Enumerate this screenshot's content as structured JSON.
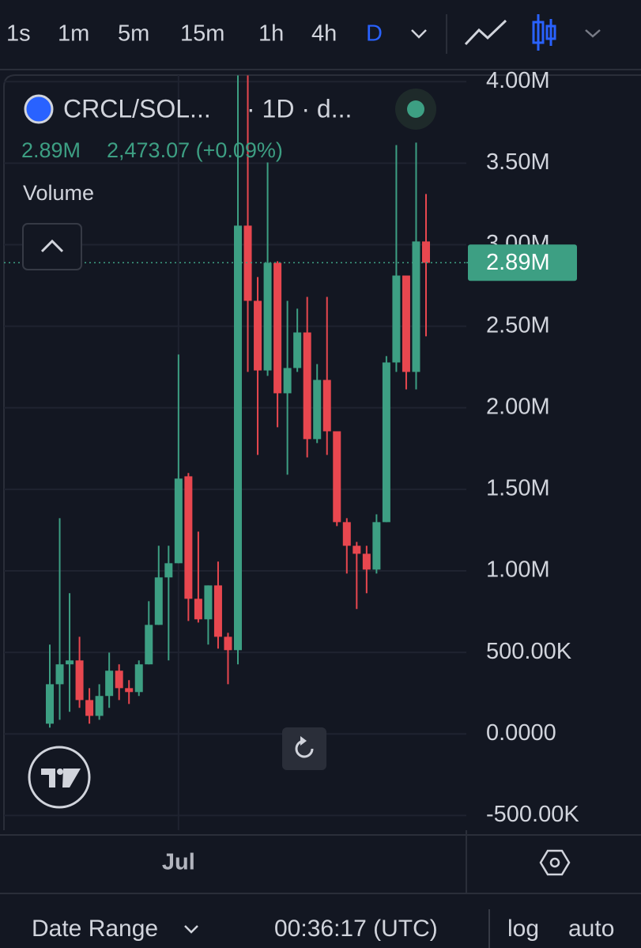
{
  "toolbar": {
    "intervals": [
      "1s",
      "1m",
      "5m",
      "15m",
      "1h",
      "4h",
      "D"
    ]
  },
  "legend": {
    "symbol": "CRCL/SOL...",
    "interval": "· 1D · d...",
    "last": "2.89M",
    "change": "2,473.07 (+0.09%)",
    "study": "Volume"
  },
  "bottom_bar": {
    "date_range": "Date Range",
    "clock": "00:36:17 (UTC)",
    "log": "log",
    "auto": "auto"
  },
  "chart_data": {
    "type": "candlestick",
    "categories": [
      null,
      null,
      null,
      null,
      null,
      null,
      null,
      null,
      null,
      null,
      null,
      null,
      null,
      "Jul",
      null,
      null,
      null,
      null,
      null,
      null,
      null,
      null,
      null,
      null,
      null,
      null,
      null,
      null,
      null,
      null,
      null,
      null,
      null,
      null,
      null,
      null,
      null,
      null,
      null
    ],
    "up_color": "#3d9f83",
    "down_color": "#e8474f",
    "open": [
      63000,
      305000,
      427000,
      451000,
      208000,
      111000,
      233000,
      388000,
      281000,
      257000,
      427000,
      669000,
      960000,
      1047000,
      1580000,
      829000,
      703000,
      911000,
      596000,
      514000,
      3117000,
      2656000,
      2229000,
      2889000,
      2089000,
      2244000,
      2462000,
      1808000,
      2171000,
      1856000,
      1299000,
      1154000,
      1105000,
      1008000,
      1299000,
      2278000,
      2811000,
      2220000,
      3020000
    ],
    "high": [
      548000,
      1323000,
      863000,
      596000,
      281000,
      305000,
      499000,
      427000,
      330000,
      451000,
      814000,
      1154000,
      1154000,
      2327000,
      1600000,
      1241000,
      911000,
      1057000,
      620000,
      4038000,
      4038000,
      2802000,
      3504000,
      2899000,
      2656000,
      2608000,
      2680000,
      2268000,
      2680000,
      1856000,
      1323000,
      1178000,
      1154000,
      1347000,
      2317000,
      3611000,
      2811000,
      3626000,
      3311000
    ],
    "low": [
      39000,
      87000,
      136000,
      160000,
      63000,
      87000,
      160000,
      208000,
      184000,
      233000,
      427000,
      669000,
      451000,
      1047000,
      693000,
      683000,
      548000,
      523000,
      305000,
      427000,
      2220000,
      1711000,
      2196000,
      1881000,
      1590000,
      2220000,
      1696000,
      1784000,
      1711000,
      1275000,
      984000,
      766000,
      863000,
      984000,
      1299000,
      2220000,
      2113000,
      2113000,
      2438000
    ],
    "close": [
      305000,
      427000,
      451000,
      208000,
      111000,
      233000,
      388000,
      281000,
      257000,
      427000,
      669000,
      960000,
      1047000,
      1566000,
      829000,
      703000,
      911000,
      596000,
      514000,
      3117000,
      2656000,
      2229000,
      2889000,
      2089000,
      2244000,
      2462000,
      1808000,
      2171000,
      1856000,
      1299000,
      1154000,
      1105000,
      1008000,
      1299000,
      2278000,
      2811000,
      2220000,
      3020000,
      2889000
    ],
    "last_price": {
      "value": 2890000,
      "label": "2.89M"
    },
    "ylim": [
      -590000,
      4040000
    ],
    "yticks": [
      {
        "value": -500000,
        "label": "-500.00K"
      },
      {
        "value": 0,
        "label": "0.0000"
      },
      {
        "value": 500000,
        "label": "500.00K"
      },
      {
        "value": 1000000,
        "label": "1.00M"
      },
      {
        "value": 1500000,
        "label": "1.50M"
      },
      {
        "value": 2000000,
        "label": "2.00M"
      },
      {
        "value": 2500000,
        "label": "2.50M"
      },
      {
        "value": 3000000,
        "label": "3.00M"
      },
      {
        "value": 3500000,
        "label": "3.50M"
      },
      {
        "value": 4000000,
        "label": "4.00M"
      }
    ],
    "grid": true
  }
}
